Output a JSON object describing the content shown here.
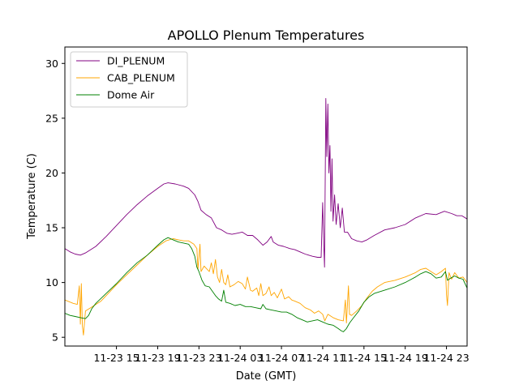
{
  "chart_data": {
    "type": "line",
    "title": "APOLLO Plenum Temperatures",
    "xlabel": "Date (GMT)",
    "ylabel": "Temperature (C)",
    "xlim": [
      0,
      39.0
    ],
    "ylim": [
      4.2,
      31.5
    ],
    "x_ticks": [
      {
        "label": "11-23 15",
        "value": 5.0
      },
      {
        "label": "11-23 19",
        "value": 9.0
      },
      {
        "label": "11-23 23",
        "value": 13.0
      },
      {
        "label": "11-24 03",
        "value": 17.0
      },
      {
        "label": "11-24 07",
        "value": 21.0
      },
      {
        "label": "11-24 11",
        "value": 25.0
      },
      {
        "label": "11-24 15",
        "value": 29.0
      },
      {
        "label": "11-24 19",
        "value": 33.0
      },
      {
        "label": "11-24 23",
        "value": 37.0
      }
    ],
    "y_ticks": [
      {
        "label": "5",
        "value": 5
      },
      {
        "label": "10",
        "value": 10
      },
      {
        "label": "15",
        "value": 15
      },
      {
        "label": "20",
        "value": 20
      },
      {
        "label": "25",
        "value": 25
      },
      {
        "label": "30",
        "value": 30
      }
    ],
    "legend_position": "top-left",
    "series": [
      {
        "name": "DI_PLENUM",
        "color": "#800080",
        "points": [
          [
            0,
            13.1
          ],
          [
            0.5,
            12.8
          ],
          [
            1,
            12.6
          ],
          [
            1.5,
            12.5
          ],
          [
            2,
            12.7
          ],
          [
            3,
            13.3
          ],
          [
            4,
            14.2
          ],
          [
            5,
            15.2
          ],
          [
            6,
            16.2
          ],
          [
            7,
            17.1
          ],
          [
            8,
            17.9
          ],
          [
            9,
            18.6
          ],
          [
            9.6,
            19.0
          ],
          [
            10,
            19.1
          ],
          [
            10.7,
            19.0
          ],
          [
            11.5,
            18.8
          ],
          [
            12,
            18.6
          ],
          [
            12.6,
            18.0
          ],
          [
            12.9,
            17.4
          ],
          [
            13.2,
            16.6
          ],
          [
            13.7,
            16.2
          ],
          [
            14.2,
            15.9
          ],
          [
            14.7,
            15.0
          ],
          [
            15.2,
            14.8
          ],
          [
            15.7,
            14.5
          ],
          [
            16.2,
            14.4
          ],
          [
            16.7,
            14.5
          ],
          [
            17.2,
            14.6
          ],
          [
            17.7,
            14.3
          ],
          [
            18.2,
            14.3
          ],
          [
            18.7,
            13.9
          ],
          [
            19.2,
            13.4
          ],
          [
            19.6,
            13.7
          ],
          [
            20.0,
            14.2
          ],
          [
            20.2,
            13.7
          ],
          [
            20.7,
            13.4
          ],
          [
            21.2,
            13.3
          ],
          [
            21.8,
            13.1
          ],
          [
            22.3,
            13.0
          ],
          [
            22.8,
            12.8
          ],
          [
            23.3,
            12.6
          ],
          [
            24.0,
            12.4
          ],
          [
            24.5,
            12.3
          ],
          [
            24.85,
            12.3
          ],
          [
            25.0,
            17.3
          ],
          [
            25.1,
            13.5
          ],
          [
            25.18,
            11.4
          ],
          [
            25.3,
            26.8
          ],
          [
            25.4,
            21.5
          ],
          [
            25.5,
            26.3
          ],
          [
            25.6,
            20.0
          ],
          [
            25.7,
            22.5
          ],
          [
            25.8,
            16.5
          ],
          [
            25.9,
            21.3
          ],
          [
            26.0,
            15.6
          ],
          [
            26.15,
            18.0
          ],
          [
            26.3,
            15.3
          ],
          [
            26.5,
            17.2
          ],
          [
            26.7,
            15.0
          ],
          [
            26.9,
            16.8
          ],
          [
            27.1,
            14.6
          ],
          [
            27.4,
            14.6
          ],
          [
            27.8,
            14.0
          ],
          [
            28.3,
            13.8
          ],
          [
            28.8,
            13.7
          ],
          [
            29.3,
            13.9
          ],
          [
            30.0,
            14.3
          ],
          [
            31.0,
            14.8
          ],
          [
            32.0,
            15.0
          ],
          [
            33.0,
            15.3
          ],
          [
            34.0,
            15.9
          ],
          [
            35.0,
            16.3
          ],
          [
            36.0,
            16.2
          ],
          [
            36.8,
            16.5
          ],
          [
            37.5,
            16.3
          ],
          [
            38.0,
            16.1
          ],
          [
            38.5,
            16.1
          ],
          [
            39.0,
            15.8
          ]
        ]
      },
      {
        "name": "CAB_PLENUM",
        "color": "#ffa500",
        "points": [
          [
            0,
            8.4
          ],
          [
            0.8,
            8.1
          ],
          [
            1.2,
            8.0
          ],
          [
            1.4,
            9.7
          ],
          [
            1.5,
            6.2
          ],
          [
            1.6,
            9.9
          ],
          [
            1.7,
            6.0
          ],
          [
            1.8,
            5.2
          ],
          [
            2.0,
            7.4
          ],
          [
            2.5,
            7.7
          ],
          [
            3.0,
            8.0
          ],
          [
            3.5,
            8.3
          ],
          [
            4.0,
            8.8
          ],
          [
            5.0,
            9.8
          ],
          [
            6.0,
            10.7
          ],
          [
            7.0,
            11.6
          ],
          [
            8.0,
            12.5
          ],
          [
            9.0,
            13.3
          ],
          [
            9.8,
            13.8
          ],
          [
            10.5,
            14.0
          ],
          [
            11.0,
            13.9
          ],
          [
            11.5,
            13.8
          ],
          [
            12.0,
            13.8
          ],
          [
            12.5,
            13.5
          ],
          [
            12.8,
            13.1
          ],
          [
            12.9,
            11.2
          ],
          [
            13.1,
            13.5
          ],
          [
            13.2,
            11.0
          ],
          [
            13.5,
            11.5
          ],
          [
            14.0,
            11.0
          ],
          [
            14.2,
            11.8
          ],
          [
            14.4,
            10.8
          ],
          [
            14.6,
            12.1
          ],
          [
            14.8,
            10.5
          ],
          [
            15.0,
            10.0
          ],
          [
            15.2,
            11.2
          ],
          [
            15.4,
            10.0
          ],
          [
            15.6,
            9.8
          ],
          [
            15.8,
            10.7
          ],
          [
            16.0,
            9.6
          ],
          [
            16.4,
            9.8
          ],
          [
            16.8,
            10.1
          ],
          [
            17.2,
            9.9
          ],
          [
            17.5,
            9.4
          ],
          [
            17.7,
            10.5
          ],
          [
            18.0,
            9.3
          ],
          [
            18.2,
            9.2
          ],
          [
            18.6,
            9.5
          ],
          [
            18.8,
            8.8
          ],
          [
            19.0,
            9.9
          ],
          [
            19.2,
            8.8
          ],
          [
            19.5,
            9.0
          ],
          [
            19.8,
            9.6
          ],
          [
            20.0,
            8.8
          ],
          [
            20.3,
            9.1
          ],
          [
            20.6,
            8.6
          ],
          [
            21.0,
            9.4
          ],
          [
            21.3,
            8.5
          ],
          [
            21.7,
            8.7
          ],
          [
            22.0,
            8.4
          ],
          [
            22.3,
            8.3
          ],
          [
            22.8,
            8.1
          ],
          [
            23.3,
            7.7
          ],
          [
            23.8,
            7.5
          ],
          [
            24.2,
            7.2
          ],
          [
            24.6,
            7.4
          ],
          [
            25.0,
            7.1
          ],
          [
            25.2,
            6.5
          ],
          [
            25.5,
            7.1
          ],
          [
            26.0,
            6.8
          ],
          [
            26.5,
            6.6
          ],
          [
            27.0,
            6.5
          ],
          [
            27.2,
            8.4
          ],
          [
            27.3,
            6.3
          ],
          [
            27.5,
            9.7
          ],
          [
            27.6,
            7.1
          ],
          [
            27.8,
            7.0
          ],
          [
            28.3,
            7.4
          ],
          [
            28.8,
            7.9
          ],
          [
            29.3,
            8.6
          ],
          [
            29.8,
            9.2
          ],
          [
            30.3,
            9.6
          ],
          [
            31.0,
            10.0
          ],
          [
            32.0,
            10.2
          ],
          [
            33.0,
            10.5
          ],
          [
            34.0,
            10.9
          ],
          [
            34.5,
            11.2
          ],
          [
            35.0,
            11.3
          ],
          [
            35.5,
            11.0
          ],
          [
            36.0,
            10.7
          ],
          [
            36.5,
            11.0
          ],
          [
            36.9,
            11.3
          ],
          [
            37.0,
            8.9
          ],
          [
            37.1,
            7.9
          ],
          [
            37.25,
            10.9
          ],
          [
            37.5,
            10.3
          ],
          [
            37.8,
            10.9
          ],
          [
            38.2,
            10.4
          ],
          [
            38.6,
            10.5
          ],
          [
            39.0,
            10.0
          ]
        ]
      },
      {
        "name": "Dome Air",
        "color": "#008000",
        "points": [
          [
            0,
            7.2
          ],
          [
            0.5,
            7.0
          ],
          [
            1.0,
            6.9
          ],
          [
            1.5,
            6.8
          ],
          [
            2.0,
            6.7
          ],
          [
            2.3,
            7.0
          ],
          [
            2.6,
            7.6
          ],
          [
            3.0,
            8.1
          ],
          [
            4.0,
            9.0
          ],
          [
            5.0,
            9.9
          ],
          [
            6.0,
            10.9
          ],
          [
            7.0,
            11.8
          ],
          [
            8.0,
            12.5
          ],
          [
            9.0,
            13.4
          ],
          [
            9.6,
            13.9
          ],
          [
            10.0,
            14.1
          ],
          [
            10.5,
            13.9
          ],
          [
            11.0,
            13.7
          ],
          [
            11.5,
            13.6
          ],
          [
            12.0,
            13.5
          ],
          [
            12.3,
            13.1
          ],
          [
            12.6,
            12.4
          ],
          [
            12.8,
            11.4
          ],
          [
            13.0,
            11.0
          ],
          [
            13.3,
            10.2
          ],
          [
            13.6,
            9.7
          ],
          [
            14.0,
            9.6
          ],
          [
            14.3,
            9.2
          ],
          [
            14.6,
            8.8
          ],
          [
            14.9,
            8.5
          ],
          [
            15.2,
            8.3
          ],
          [
            15.4,
            9.3
          ],
          [
            15.6,
            8.2
          ],
          [
            16.0,
            8.1
          ],
          [
            16.5,
            7.9
          ],
          [
            17.0,
            8.0
          ],
          [
            17.5,
            7.8
          ],
          [
            18.0,
            7.8
          ],
          [
            18.5,
            7.7
          ],
          [
            19.0,
            7.6
          ],
          [
            19.2,
            8.0
          ],
          [
            19.5,
            7.6
          ],
          [
            20.0,
            7.5
          ],
          [
            20.5,
            7.4
          ],
          [
            21.0,
            7.3
          ],
          [
            21.5,
            7.3
          ],
          [
            22.0,
            7.1
          ],
          [
            22.5,
            6.8
          ],
          [
            23.0,
            6.6
          ],
          [
            23.5,
            6.4
          ],
          [
            24.0,
            6.5
          ],
          [
            24.5,
            6.6
          ],
          [
            25.0,
            6.4
          ],
          [
            25.5,
            6.2
          ],
          [
            26.0,
            6.1
          ],
          [
            26.5,
            5.8
          ],
          [
            26.8,
            5.6
          ],
          [
            27.0,
            5.5
          ],
          [
            27.3,
            5.8
          ],
          [
            27.6,
            6.3
          ],
          [
            28.0,
            6.8
          ],
          [
            28.5,
            7.4
          ],
          [
            29.0,
            8.2
          ],
          [
            29.5,
            8.7
          ],
          [
            30.0,
            9.0
          ],
          [
            31.0,
            9.3
          ],
          [
            32.0,
            9.6
          ],
          [
            33.0,
            10.0
          ],
          [
            34.0,
            10.5
          ],
          [
            34.5,
            10.8
          ],
          [
            35.0,
            11.0
          ],
          [
            35.5,
            10.8
          ],
          [
            36.0,
            10.4
          ],
          [
            36.5,
            10.5
          ],
          [
            36.9,
            11.0
          ],
          [
            37.1,
            10.2
          ],
          [
            37.4,
            10.4
          ],
          [
            37.8,
            10.6
          ],
          [
            38.2,
            10.4
          ],
          [
            38.6,
            10.3
          ],
          [
            39.0,
            9.5
          ]
        ]
      }
    ]
  }
}
